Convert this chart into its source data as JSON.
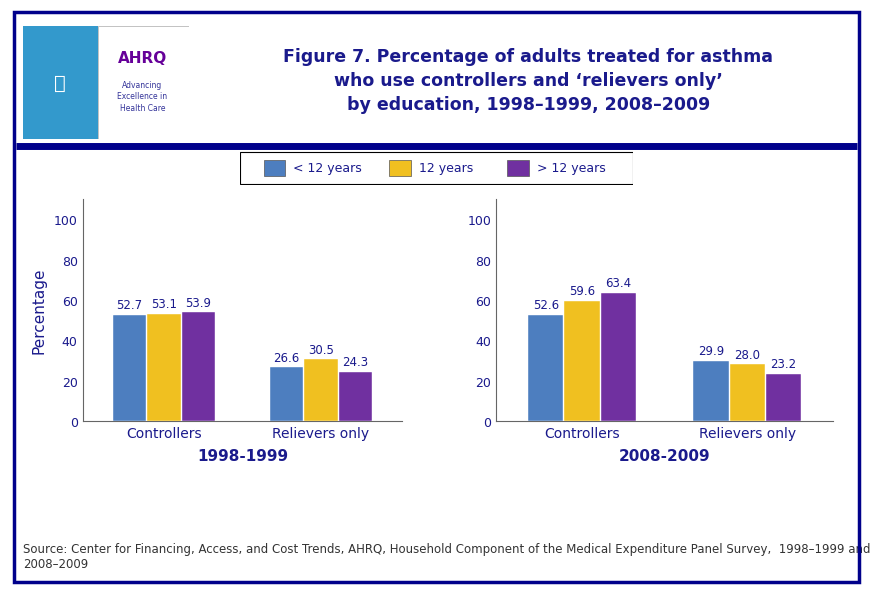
{
  "title_line1": "Figure 7. Percentage of adults treated for asthma",
  "title_line2": "who use controllers and ‘relievers only’",
  "title_line3": "by education, 1998–1999, 2008–2009",
  "title_color": "#1a1a8c",
  "title_fontsize": 12.5,
  "legend_labels": [
    "< 12 years",
    "12 years",
    "> 12 years"
  ],
  "bar_colors": [
    "#4d7ebf",
    "#f0c020",
    "#7030a0"
  ],
  "categories": [
    "Controllers",
    "Relievers only"
  ],
  "ylabel": "Percentage",
  "yticks": [
    0,
    20,
    40,
    60,
    80,
    100
  ],
  "ylim": [
    0,
    110
  ],
  "period1_label": "1998-1999",
  "period2_label": "2008-2009",
  "period1_data": {
    "Controllers": [
      52.7,
      53.1,
      53.9
    ],
    "Relievers only": [
      26.6,
      30.5,
      24.3
    ]
  },
  "period2_data": {
    "Controllers": [
      52.6,
      59.6,
      63.4
    ],
    "Relievers only": [
      29.9,
      28.0,
      23.2
    ]
  },
  "bg_color": "#ffffff",
  "border_color": "#00008b",
  "source_text": "Source: Center for Financing, Access, and Cost Trends, AHRQ, Household Component of the Medical Expenditure Panel Survey,  1998–1999 and\n2008–2009",
  "source_fontsize": 8.5,
  "bar_width": 0.22,
  "value_label_fontsize": 8.5,
  "axis_tick_color": "#1a1a8c",
  "axis_label_color": "#1a1a8c",
  "period_label_color": "#1a1a8c",
  "period_label_fontsize": 11,
  "xtick_fontsize": 10,
  "ytick_fontsize": 9
}
